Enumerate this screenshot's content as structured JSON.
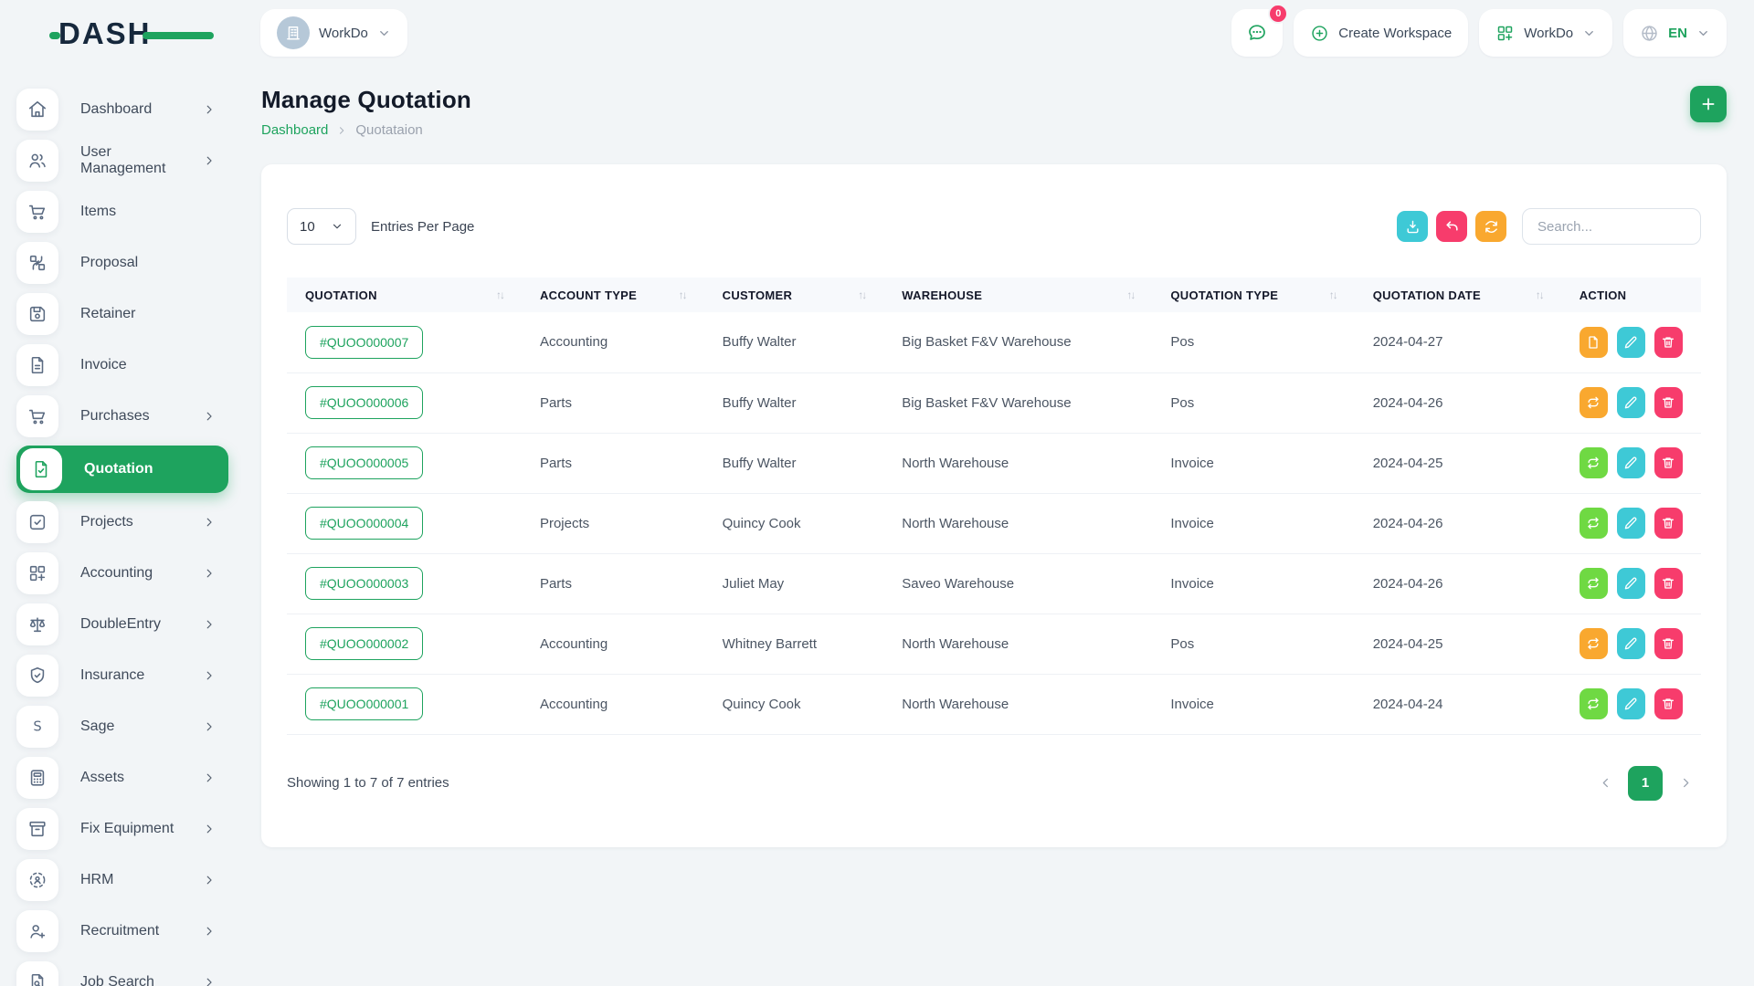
{
  "brand": {
    "logo_text": "DASH"
  },
  "topbar": {
    "workspace_switcher": {
      "label": "WorkDo",
      "icon": "building-icon"
    },
    "messages_badge": "0",
    "create_workspace_label": "Create Workspace",
    "workdo_menu_label": "WorkDo",
    "language_code": "EN"
  },
  "sidebar": {
    "items": [
      {
        "label": "Dashboard",
        "icon": "home-icon",
        "chevron": true,
        "active": false
      },
      {
        "label": "User Management",
        "icon": "users-icon",
        "chevron": true,
        "active": false
      },
      {
        "label": "Items",
        "icon": "cart-icon",
        "chevron": false,
        "active": false
      },
      {
        "label": "Proposal",
        "icon": "proposal-icon",
        "chevron": false,
        "active": false
      },
      {
        "label": "Retainer",
        "icon": "save-icon",
        "chevron": false,
        "active": false
      },
      {
        "label": "Invoice",
        "icon": "invoice-icon",
        "chevron": false,
        "active": false
      },
      {
        "label": "Purchases",
        "icon": "cart-icon",
        "chevron": true,
        "active": false
      },
      {
        "label": "Quotation",
        "icon": "quotation-icon",
        "chevron": false,
        "active": true
      },
      {
        "label": "Projects",
        "icon": "projects-icon",
        "chevron": true,
        "active": false
      },
      {
        "label": "Accounting",
        "icon": "grid-plus-icon",
        "chevron": true,
        "active": false
      },
      {
        "label": "DoubleEntry",
        "icon": "scale-icon",
        "chevron": true,
        "active": false
      },
      {
        "label": "Insurance",
        "icon": "shield-icon",
        "chevron": true,
        "active": false
      },
      {
        "label": "Sage",
        "icon": "sage-icon",
        "chevron": true,
        "active": false
      },
      {
        "label": "Assets",
        "icon": "calculator-icon",
        "chevron": true,
        "active": false
      },
      {
        "label": "Fix Equipment",
        "icon": "archive-icon",
        "chevron": true,
        "active": false
      },
      {
        "label": "HRM",
        "icon": "hrm-icon",
        "chevron": true,
        "active": false
      },
      {
        "label": "Recruitment",
        "icon": "user-plus-icon",
        "chevron": true,
        "active": false
      },
      {
        "label": "Job Search",
        "icon": "file-search-icon",
        "chevron": true,
        "active": false
      }
    ]
  },
  "page": {
    "title": "Manage Quotation",
    "breadcrumb_root": "Dashboard",
    "breadcrumb_current": "Quotataion"
  },
  "toolbar": {
    "entries_value": "10",
    "entries_label": "Entries Per Page",
    "search_placeholder": "Search..."
  },
  "table": {
    "columns": [
      {
        "label": "QUOTATION",
        "sortable": true
      },
      {
        "label": "ACCOUNT TYPE",
        "sortable": true
      },
      {
        "label": "CUSTOMER",
        "sortable": true
      },
      {
        "label": "WAREHOUSE",
        "sortable": true
      },
      {
        "label": "QUOTATION TYPE",
        "sortable": true
      },
      {
        "label": "QUOTATION DATE",
        "sortable": true
      },
      {
        "label": "ACTION",
        "sortable": false
      }
    ],
    "rows": [
      {
        "quotation": "#QUOO000007",
        "account_type": "Accounting",
        "customer": "Buffy Walter",
        "warehouse": "Big Basket F&V Warehouse",
        "quotation_type": "Pos",
        "quotation_date": "2024-04-27",
        "actions": [
          {
            "name": "convert",
            "icon": "file-icon",
            "color": "orange"
          },
          {
            "name": "edit",
            "icon": "edit-icon",
            "color": "cyan"
          },
          {
            "name": "delete",
            "icon": "trash-icon",
            "color": "pink"
          }
        ]
      },
      {
        "quotation": "#QUOO000006",
        "account_type": "Parts",
        "customer": "Buffy Walter",
        "warehouse": "Big Basket F&V Warehouse",
        "quotation_type": "Pos",
        "quotation_date": "2024-04-26",
        "actions": [
          {
            "name": "convert",
            "icon": "convert-icon",
            "color": "orange"
          },
          {
            "name": "edit",
            "icon": "edit-icon",
            "color": "cyan"
          },
          {
            "name": "delete",
            "icon": "trash-icon",
            "color": "pink"
          }
        ]
      },
      {
        "quotation": "#QUOO000005",
        "account_type": "Parts",
        "customer": "Buffy Walter",
        "warehouse": "North Warehouse",
        "quotation_type": "Invoice",
        "quotation_date": "2024-04-25",
        "actions": [
          {
            "name": "convert",
            "icon": "convert-icon",
            "color": "green"
          },
          {
            "name": "edit",
            "icon": "edit-icon",
            "color": "cyan"
          },
          {
            "name": "delete",
            "icon": "trash-icon",
            "color": "pink"
          }
        ]
      },
      {
        "quotation": "#QUOO000004",
        "account_type": "Projects",
        "customer": "Quincy Cook",
        "warehouse": "North Warehouse",
        "quotation_type": "Invoice",
        "quotation_date": "2024-04-26",
        "actions": [
          {
            "name": "convert",
            "icon": "convert-icon",
            "color": "green"
          },
          {
            "name": "edit",
            "icon": "edit-icon",
            "color": "cyan"
          },
          {
            "name": "delete",
            "icon": "trash-icon",
            "color": "pink"
          }
        ]
      },
      {
        "quotation": "#QUOO000003",
        "account_type": "Parts",
        "customer": "Juliet May",
        "warehouse": "Saveo Warehouse",
        "quotation_type": "Invoice",
        "quotation_date": "2024-04-26",
        "actions": [
          {
            "name": "convert",
            "icon": "convert-icon",
            "color": "green"
          },
          {
            "name": "edit",
            "icon": "edit-icon",
            "color": "cyan"
          },
          {
            "name": "delete",
            "icon": "trash-icon",
            "color": "pink"
          }
        ]
      },
      {
        "quotation": "#QUOO000002",
        "account_type": "Accounting",
        "customer": "Whitney Barrett",
        "warehouse": "North Warehouse",
        "quotation_type": "Pos",
        "quotation_date": "2024-04-25",
        "actions": [
          {
            "name": "convert",
            "icon": "convert-icon",
            "color": "orange"
          },
          {
            "name": "edit",
            "icon": "edit-icon",
            "color": "cyan"
          },
          {
            "name": "delete",
            "icon": "trash-icon",
            "color": "pink"
          }
        ]
      },
      {
        "quotation": "#QUOO000001",
        "account_type": "Accounting",
        "customer": "Quincy Cook",
        "warehouse": "North Warehouse",
        "quotation_type": "Invoice",
        "quotation_date": "2024-04-24",
        "actions": [
          {
            "name": "convert",
            "icon": "convert-icon",
            "color": "green"
          },
          {
            "name": "edit",
            "icon": "edit-icon",
            "color": "cyan"
          },
          {
            "name": "delete",
            "icon": "trash-icon",
            "color": "pink"
          }
        ]
      }
    ]
  },
  "footer": {
    "showing_text": "Showing 1 to 7 of 7 entries",
    "page": "1"
  },
  "colors": {
    "primary_green": "#1ea35e",
    "lime_action": "#6fd943",
    "cyan_action": "#3ec9d6",
    "pink_action": "#f73c6c",
    "orange_action": "#f9a82f",
    "page_background": "#f2f5f7"
  }
}
